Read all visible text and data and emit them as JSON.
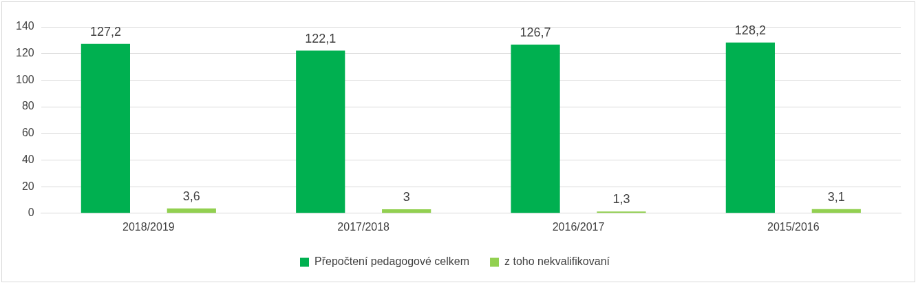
{
  "chart_data": {
    "type": "bar",
    "categories": [
      "2018/2019",
      "2017/2018",
      "2016/2017",
      "2015/2016"
    ],
    "series": [
      {
        "name": "Přepočtení pedagogové celkem",
        "color": "#00b050",
        "values": [
          127.2,
          122.1,
          126.7,
          128.2
        ],
        "value_labels": [
          "127,2",
          "122,1",
          "126,7",
          "128,2"
        ]
      },
      {
        "name": "z toho nekvalifikovaní",
        "color": "#92d050",
        "values": [
          3.6,
          3,
          1.3,
          3.1
        ],
        "value_labels": [
          "3,6",
          "3",
          "1,3",
          "3,1"
        ]
      }
    ],
    "ylim": [
      0,
      140
    ],
    "yticks": [
      0,
      20,
      40,
      60,
      80,
      100,
      120,
      140
    ],
    "grid": "y",
    "legend": "bottom"
  }
}
